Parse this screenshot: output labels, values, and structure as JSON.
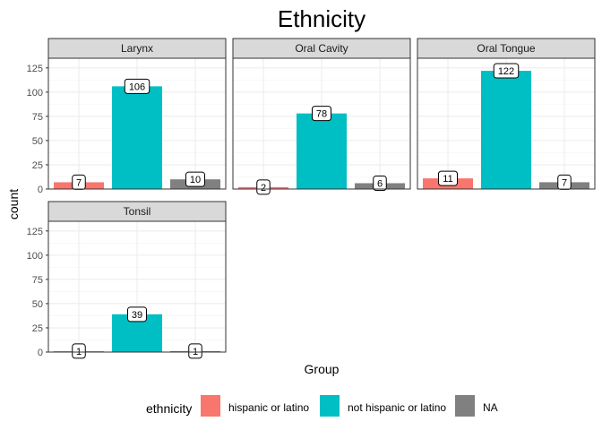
{
  "chart_data": {
    "type": "bar",
    "title": "Ethnicity",
    "xlabel": "Group",
    "ylabel": "count",
    "ylim": [
      0,
      135
    ],
    "yticks": [
      0,
      25,
      50,
      75,
      100,
      125
    ],
    "grid": true,
    "legend": {
      "title": "ethnicity",
      "position": "bottom",
      "entries": [
        {
          "name": "hispanic or latino",
          "color": "#F8766D"
        },
        {
          "name": "not hispanic or latino",
          "color": "#00BFC4"
        },
        {
          "name": "NA",
          "color": "#808080"
        }
      ]
    },
    "panels": [
      {
        "name": "Larynx",
        "values": [
          7,
          106,
          10
        ]
      },
      {
        "name": "Oral Cavity",
        "values": [
          2,
          78,
          6
        ]
      },
      {
        "name": "Oral Tongue",
        "values": [
          11,
          122,
          7
        ]
      },
      {
        "name": "Tonsil",
        "values": [
          1,
          39,
          1
        ]
      }
    ]
  }
}
